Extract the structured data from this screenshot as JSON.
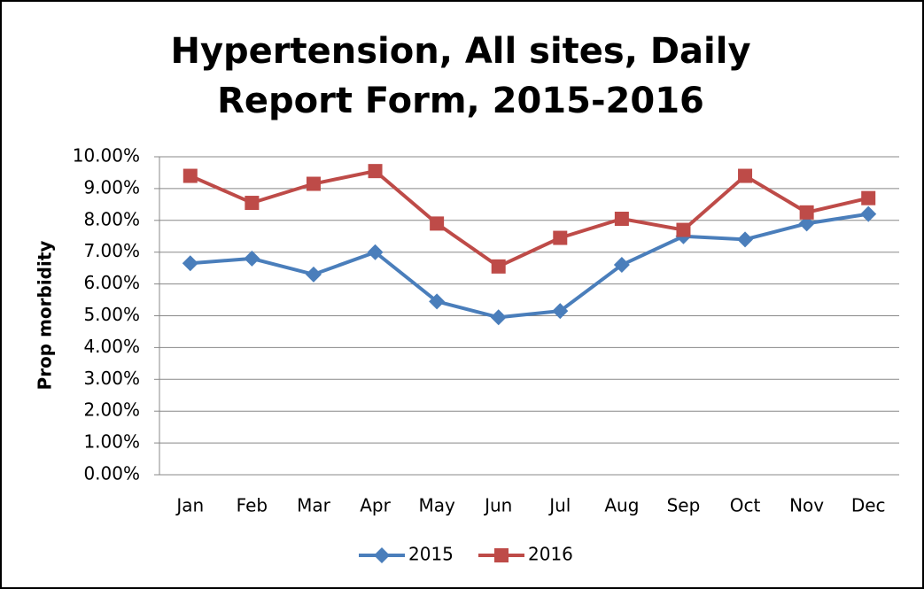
{
  "chart_data": {
    "type": "line",
    "title": "Hypertension, All sites, Daily Report Form, 2015-2016",
    "y_label": "Prop morbidity",
    "categories": [
      "Jan",
      "Feb",
      "Mar",
      "Apr",
      "May",
      "Jun",
      "Jul",
      "Aug",
      "Sep",
      "Oct",
      "Nov",
      "Dec"
    ],
    "series": [
      {
        "name": "2015",
        "color": "#4a7ebb",
        "marker": "diamond",
        "values": [
          6.65,
          6.8,
          6.3,
          7.0,
          5.45,
          4.95,
          5.15,
          6.6,
          7.5,
          7.4,
          7.9,
          8.2
        ]
      },
      {
        "name": "2016",
        "color": "#be4b48",
        "marker": "square",
        "values": [
          9.4,
          8.55,
          9.15,
          9.55,
          7.9,
          6.55,
          7.45,
          8.05,
          7.7,
          9.4,
          8.25,
          8.7
        ]
      }
    ],
    "ylim": [
      0,
      10
    ],
    "yticks": [
      {
        "value": 0,
        "label": "0.00%"
      },
      {
        "value": 1,
        "label": "1.00%"
      },
      {
        "value": 2,
        "label": "2.00%"
      },
      {
        "value": 3,
        "label": "3.00%"
      },
      {
        "value": 4,
        "label": "4.00%"
      },
      {
        "value": 5,
        "label": "5.00%"
      },
      {
        "value": 6,
        "label": "6.00%"
      },
      {
        "value": 7,
        "label": "7.00%"
      },
      {
        "value": 8,
        "label": "8.00%"
      },
      {
        "value": 9,
        "label": "9.00%"
      },
      {
        "value": 10,
        "label": "10.00%"
      }
    ],
    "grid": true,
    "legend": "bottom"
  }
}
